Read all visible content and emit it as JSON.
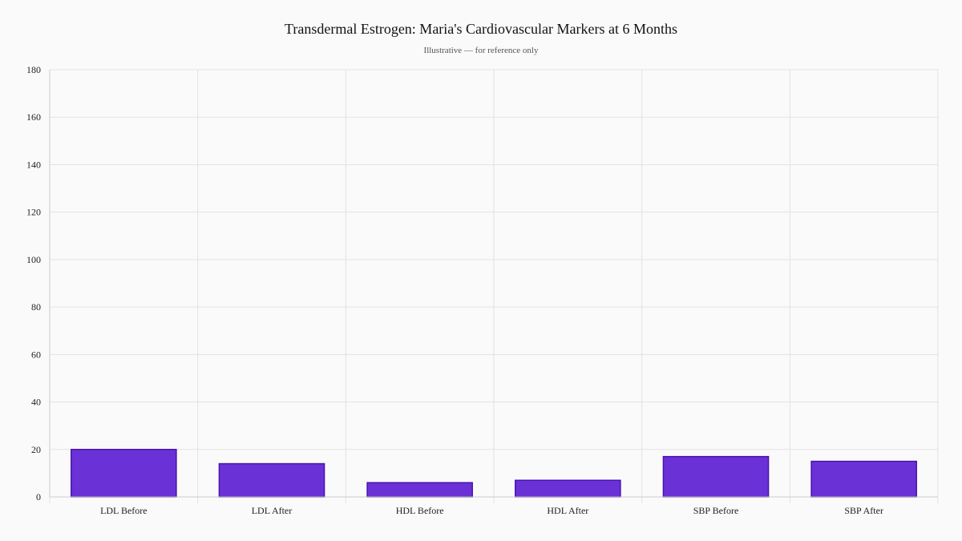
{
  "chart_data": {
    "type": "bar",
    "title": "Transdermal Estrogen: Maria's Cardiovascular Markers at 6 Months",
    "subtitle": "Illustrative — for reference only",
    "categories": [
      "LDL Before",
      "LDL After",
      "HDL Before",
      "HDL After",
      "SBP Before",
      "SBP After"
    ],
    "values": [
      20,
      14,
      6,
      7,
      17,
      15
    ],
    "ylim": [
      0,
      180
    ],
    "yticks": [
      0,
      20,
      40,
      60,
      80,
      100,
      120,
      140,
      160,
      180
    ],
    "grid": true,
    "xlabel": "",
    "ylabel": ""
  },
  "colors": {
    "bar_fill": "#6a32d6",
    "bar_stroke": "#4a12b0",
    "background": "#fafafa"
  }
}
